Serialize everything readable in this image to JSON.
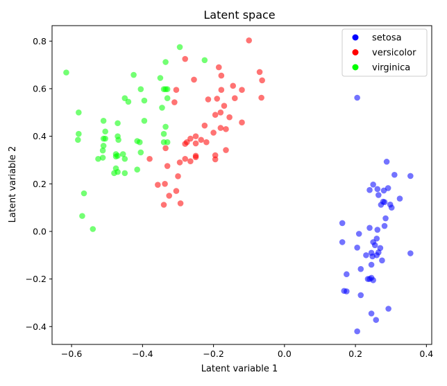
{
  "chart_data": {
    "type": "scatter",
    "title": "Latent space",
    "xlabel": "Latent variable 1",
    "ylabel": "Latent variable 2",
    "xlim": [
      -0.655,
      0.415
    ],
    "ylim": [
      -0.475,
      0.865
    ],
    "xticks": [
      -0.6,
      -0.4,
      -0.2,
      0.0,
      0.2,
      0.4
    ],
    "xtick_labels": [
      "−0.6",
      "−0.4",
      "−0.2",
      "0.0",
      "0.2",
      "0.4"
    ],
    "yticks": [
      -0.4,
      -0.2,
      0.0,
      0.2,
      0.4,
      0.6,
      0.8
    ],
    "ytick_labels": [
      "−0.4",
      "−0.2",
      "0.0",
      "0.2",
      "0.4",
      "0.6",
      "0.8"
    ],
    "grid": false,
    "legend_position": "top-right",
    "series": [
      {
        "name": "setosa",
        "color": "#0000ff",
        "points": [
          [
            0.205,
            0.562
          ],
          [
            0.288,
            0.293
          ],
          [
            0.31,
            0.238
          ],
          [
            0.355,
            0.233
          ],
          [
            0.25,
            0.197
          ],
          [
            0.262,
            0.178
          ],
          [
            0.24,
            0.174
          ],
          [
            0.292,
            0.182
          ],
          [
            0.28,
            0.172
          ],
          [
            0.265,
            0.153
          ],
          [
            0.325,
            0.138
          ],
          [
            0.278,
            0.125
          ],
          [
            0.282,
            0.123
          ],
          [
            0.272,
            0.112
          ],
          [
            0.298,
            0.113
          ],
          [
            0.302,
            0.1
          ],
          [
            0.285,
            0.055
          ],
          [
            0.282,
            0.023
          ],
          [
            0.163,
            0.035
          ],
          [
            0.24,
            0.015
          ],
          [
            0.262,
            0.007
          ],
          [
            0.21,
            -0.01
          ],
          [
            0.26,
            -0.03
          ],
          [
            0.25,
            -0.045
          ],
          [
            0.163,
            -0.045
          ],
          [
            0.255,
            -0.058
          ],
          [
            0.27,
            -0.07
          ],
          [
            0.205,
            -0.068
          ],
          [
            0.245,
            -0.09
          ],
          [
            0.265,
            -0.088
          ],
          [
            0.26,
            -0.1
          ],
          [
            0.23,
            -0.1
          ],
          [
            0.248,
            -0.105
          ],
          [
            0.355,
            -0.092
          ],
          [
            0.275,
            -0.122
          ],
          [
            0.245,
            -0.14
          ],
          [
            0.215,
            -0.158
          ],
          [
            0.175,
            -0.18
          ],
          [
            0.245,
            -0.195
          ],
          [
            0.24,
            -0.2
          ],
          [
            0.235,
            -0.2
          ],
          [
            0.25,
            -0.205
          ],
          [
            0.168,
            -0.25
          ],
          [
            0.175,
            -0.252
          ],
          [
            0.215,
            -0.268
          ],
          [
            0.293,
            -0.325
          ],
          [
            0.245,
            -0.345
          ],
          [
            0.258,
            -0.372
          ],
          [
            0.205,
            -0.42
          ]
        ]
      },
      {
        "name": "versicolor",
        "color": "#ff0000",
        "points": [
          [
            -0.1,
            0.803
          ],
          [
            -0.28,
            0.725
          ],
          [
            -0.185,
            0.69
          ],
          [
            -0.07,
            0.67
          ],
          [
            -0.178,
            0.655
          ],
          [
            -0.255,
            0.638
          ],
          [
            -0.063,
            0.635
          ],
          [
            -0.145,
            0.612
          ],
          [
            -0.12,
            0.595
          ],
          [
            -0.178,
            0.595
          ],
          [
            -0.305,
            0.595
          ],
          [
            -0.065,
            0.562
          ],
          [
            -0.14,
            0.56
          ],
          [
            -0.19,
            0.558
          ],
          [
            -0.215,
            0.555
          ],
          [
            -0.31,
            0.543
          ],
          [
            -0.17,
            0.528
          ],
          [
            -0.18,
            0.5
          ],
          [
            -0.195,
            0.49
          ],
          [
            -0.155,
            0.48
          ],
          [
            -0.12,
            0.458
          ],
          [
            -0.225,
            0.445
          ],
          [
            -0.18,
            0.435
          ],
          [
            -0.165,
            0.43
          ],
          [
            -0.2,
            0.415
          ],
          [
            -0.25,
            0.4
          ],
          [
            -0.265,
            0.39
          ],
          [
            -0.235,
            0.385
          ],
          [
            -0.22,
            0.375
          ],
          [
            -0.25,
            0.37
          ],
          [
            -0.275,
            0.375
          ],
          [
            -0.28,
            0.368
          ],
          [
            -0.335,
            0.35
          ],
          [
            -0.165,
            0.342
          ],
          [
            -0.195,
            0.32
          ],
          [
            -0.25,
            0.318
          ],
          [
            -0.25,
            0.312
          ],
          [
            -0.28,
            0.305
          ],
          [
            -0.195,
            0.303
          ],
          [
            -0.265,
            0.295
          ],
          [
            -0.295,
            0.29
          ],
          [
            -0.33,
            0.275
          ],
          [
            -0.3,
            0.232
          ],
          [
            -0.337,
            0.2
          ],
          [
            -0.357,
            0.196
          ],
          [
            -0.305,
            0.17
          ],
          [
            -0.325,
            0.15
          ],
          [
            -0.293,
            0.118
          ],
          [
            -0.34,
            0.112
          ],
          [
            -0.38,
            0.305
          ]
        ]
      },
      {
        "name": "virginica",
        "color": "#00ff00",
        "points": [
          [
            -0.295,
            0.775
          ],
          [
            -0.615,
            0.668
          ],
          [
            -0.35,
            0.645
          ],
          [
            -0.225,
            0.72
          ],
          [
            -0.335,
            0.712
          ],
          [
            -0.425,
            0.658
          ],
          [
            -0.335,
            0.598
          ],
          [
            -0.405,
            0.598
          ],
          [
            -0.33,
            0.598
          ],
          [
            -0.34,
            0.598
          ],
          [
            -0.33,
            0.56
          ],
          [
            -0.45,
            0.56
          ],
          [
            -0.44,
            0.545
          ],
          [
            -0.395,
            0.55
          ],
          [
            -0.345,
            0.52
          ],
          [
            -0.58,
            0.5
          ],
          [
            -0.51,
            0.465
          ],
          [
            -0.47,
            0.455
          ],
          [
            -0.395,
            0.465
          ],
          [
            -0.335,
            0.44
          ],
          [
            -0.505,
            0.42
          ],
          [
            -0.34,
            0.41
          ],
          [
            -0.58,
            0.41
          ],
          [
            -0.47,
            0.4
          ],
          [
            -0.505,
            0.39
          ],
          [
            -0.51,
            0.39
          ],
          [
            -0.582,
            0.385
          ],
          [
            -0.468,
            0.385
          ],
          [
            -0.415,
            0.38
          ],
          [
            -0.408,
            0.375
          ],
          [
            -0.33,
            0.375
          ],
          [
            -0.34,
            0.375
          ],
          [
            -0.51,
            0.36
          ],
          [
            -0.512,
            0.34
          ],
          [
            -0.405,
            0.332
          ],
          [
            -0.455,
            0.325
          ],
          [
            -0.47,
            0.318
          ],
          [
            -0.475,
            0.315
          ],
          [
            -0.512,
            0.31
          ],
          [
            -0.525,
            0.305
          ],
          [
            -0.45,
            0.305
          ],
          [
            -0.475,
            0.265
          ],
          [
            -0.415,
            0.26
          ],
          [
            -0.47,
            0.25
          ],
          [
            -0.48,
            0.245
          ],
          [
            -0.45,
            0.245
          ],
          [
            -0.565,
            0.16
          ],
          [
            -0.57,
            0.065
          ],
          [
            -0.54,
            0.01
          ],
          [
            -0.475,
            0.325
          ]
        ]
      }
    ]
  }
}
